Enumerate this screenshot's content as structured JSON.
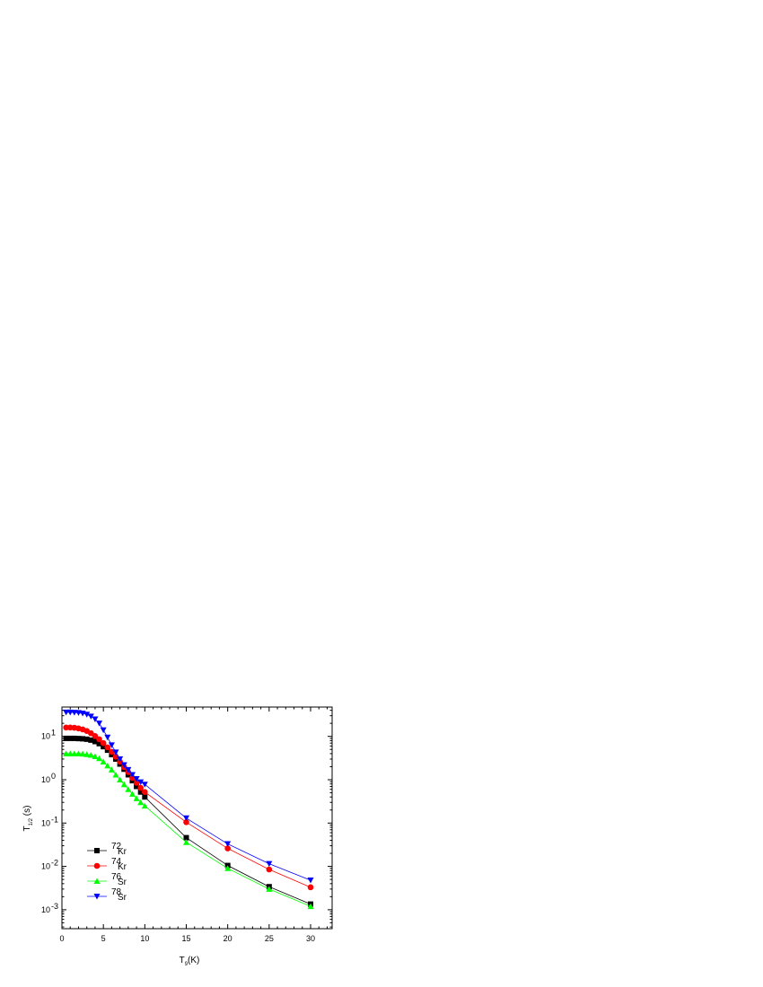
{
  "chart_data": {
    "type": "scatter",
    "xlabel": "T9(K)",
    "xlabel_parts": {
      "base": "T",
      "sub": "9",
      "rest": "(K)"
    },
    "ylabel": "T1/2 (s)",
    "ylabel_parts": {
      "base": "T",
      "sub": "1/2",
      "rest": " (s)"
    },
    "xlim": [
      0,
      33
    ],
    "ylim": [
      0.0004,
      45
    ],
    "yscale": "log",
    "x_ticks": [
      0,
      5,
      10,
      15,
      20,
      25,
      30
    ],
    "x_tick_labels": [
      "0",
      "5",
      "10",
      "15",
      "20",
      "25",
      "30"
    ],
    "y_ticks": [
      0.001,
      0.01,
      0.1,
      1,
      10
    ],
    "y_tick_labels": [
      {
        "base": "10",
        "exp": "-3"
      },
      {
        "base": "10",
        "exp": "-2"
      },
      {
        "base": "10",
        "exp": "-1"
      },
      {
        "base": "10",
        "exp": "0"
      },
      {
        "base": "10",
        "exp": "1"
      }
    ],
    "grid": false,
    "legend_position": "bottom-left",
    "x": [
      0.5,
      1,
      1.5,
      2,
      2.5,
      3,
      3.5,
      4,
      4.5,
      5,
      5.5,
      6,
      6.5,
      7,
      7.5,
      8,
      8.5,
      9,
      9.5,
      10,
      15,
      20,
      25,
      30
    ],
    "series": [
      {
        "name": "72Kr",
        "label_sup": "72",
        "label_main": "Kr",
        "color": "#000000",
        "marker": "square",
        "values": [
          9.0,
          9.0,
          9.0,
          8.9,
          8.8,
          8.6,
          8.2,
          7.6,
          6.8,
          5.8,
          4.8,
          3.8,
          3.0,
          2.3,
          1.75,
          1.3,
          0.95,
          0.7,
          0.52,
          0.4,
          0.046,
          0.0105,
          0.0034,
          0.00135
        ]
      },
      {
        "name": "74Kr",
        "label_sup": "74",
        "label_main": "Kr",
        "color": "#ff0000",
        "marker": "circle",
        "values": [
          16.0,
          16.0,
          15.8,
          15.3,
          14.5,
          13.3,
          11.8,
          10.2,
          8.6,
          7.0,
          5.6,
          4.4,
          3.4,
          2.6,
          1.95,
          1.5,
          1.1,
          0.85,
          0.65,
          0.52,
          0.105,
          0.026,
          0.0085,
          0.0033
        ]
      },
      {
        "name": "76Sr",
        "label_sup": "76",
        "label_main": "Sr",
        "color": "#00ff00",
        "marker": "triangle-up",
        "values": [
          4.0,
          4.0,
          4.0,
          4.0,
          3.95,
          3.85,
          3.7,
          3.45,
          3.1,
          2.6,
          2.1,
          1.7,
          1.3,
          1.0,
          0.78,
          0.6,
          0.47,
          0.37,
          0.3,
          0.25,
          0.036,
          0.009,
          0.003,
          0.0012
        ]
      },
      {
        "name": "78Sr",
        "label_sup": "78",
        "label_main": "Sr",
        "color": "#0000ff",
        "marker": "triangle-down",
        "values": [
          36.0,
          36.0,
          35.5,
          35.0,
          34.0,
          32.0,
          29.0,
          25.0,
          20.0,
          14.0,
          9.5,
          6.3,
          4.3,
          3.0,
          2.2,
          1.7,
          1.3,
          1.05,
          0.88,
          0.78,
          0.13,
          0.033,
          0.0115,
          0.0048
        ]
      }
    ]
  }
}
